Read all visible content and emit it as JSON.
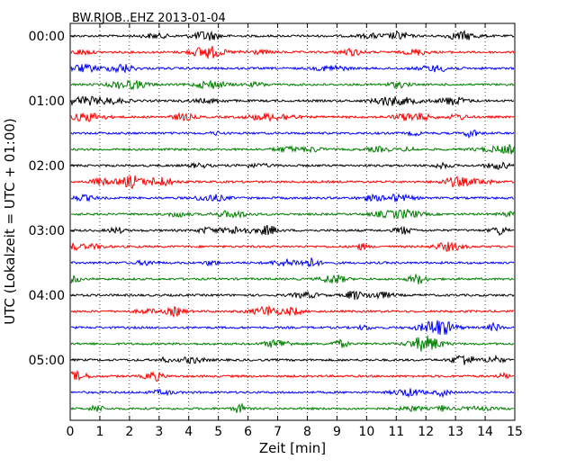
{
  "chart_data": {
    "type": "line",
    "title": "BW.RJOB..EHZ 2013-01-04",
    "xlabel": "Zeit  [min]",
    "ylabel": "UTC (Lokalzeit = UTC + 01:00)",
    "xlim": [
      0,
      15
    ],
    "x_ticks": [
      0,
      1,
      2,
      3,
      4,
      5,
      6,
      7,
      8,
      9,
      10,
      11,
      12,
      13,
      14,
      15
    ],
    "grid": "vertical dotted",
    "trace_count": 24,
    "trace_interval_min": 15,
    "trace_colors": [
      "#000000",
      "#ff0000",
      "#0000ff",
      "#007f00"
    ],
    "y_tick_labels": [
      "00:00",
      "01:00",
      "02:00",
      "03:00",
      "04:00",
      "05:00"
    ],
    "y_tick_trace_index": [
      0,
      4,
      8,
      12,
      16,
      20
    ]
  }
}
